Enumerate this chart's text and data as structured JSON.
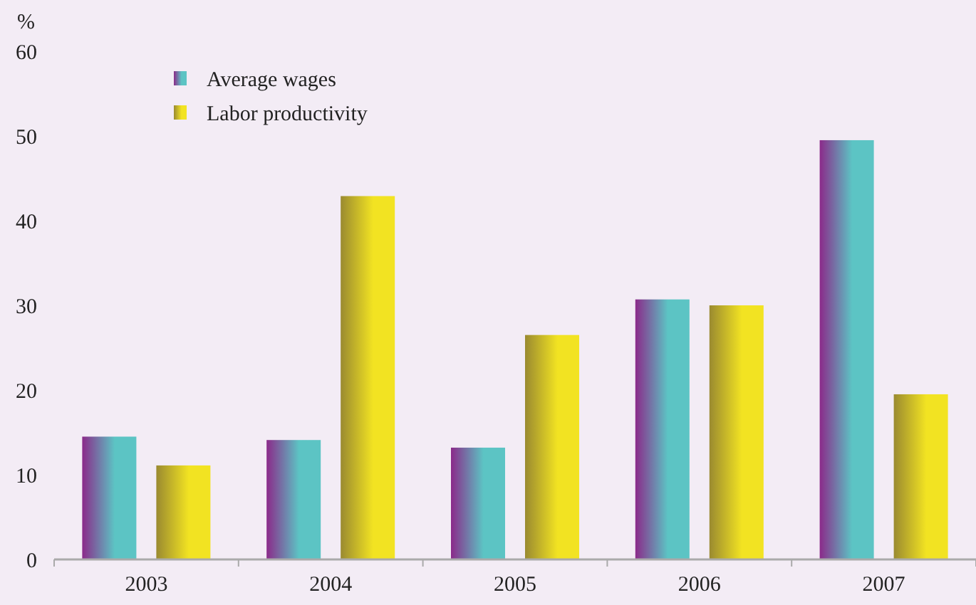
{
  "chart_data": {
    "type": "bar",
    "ylabel": "%",
    "categories": [
      "2003",
      "2004",
      "2005",
      "2006",
      "2007"
    ],
    "series": [
      {
        "name": "Average wages",
        "color": "#5cc4c4",
        "values": [
          14.5,
          14.1,
          13.2,
          30.7,
          49.5
        ]
      },
      {
        "name": "Labor productivity",
        "color": "#f2e322",
        "values": [
          11.1,
          42.9,
          26.5,
          30.0,
          19.5
        ]
      }
    ],
    "ylim": [
      0,
      60
    ],
    "yticks": [
      0,
      10,
      20,
      30,
      40,
      50,
      60
    ],
    "grid": false,
    "legend": "top left"
  }
}
